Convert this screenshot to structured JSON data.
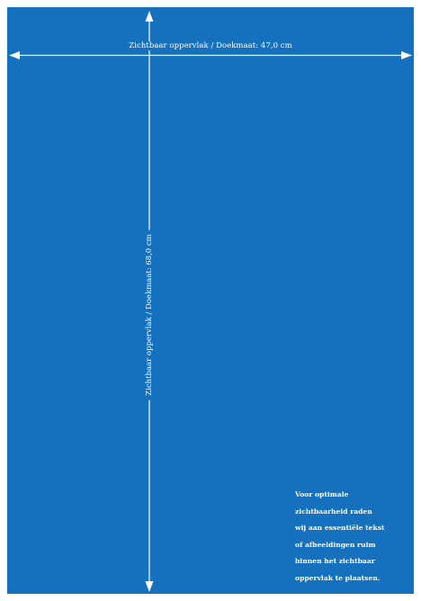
{
  "colors": {
    "canvas": "#1570be",
    "lines": "#ffffff",
    "border": "#ffffff"
  },
  "dimensions": {
    "horizontal_label": "Zichtbaar oppervlak / Doekmaat: 47,0 cm",
    "vertical_label": "Zichtbaar oppervlak / Doekmaat: 68,0 cm"
  },
  "note": {
    "lines": [
      "Voor optimale",
      "zichtbaarheid raden",
      "wij aan essentiële tekst",
      "of afbeeldingen ruim",
      "binnen het zichtbaar",
      "oppervlak te plaatsen."
    ]
  }
}
